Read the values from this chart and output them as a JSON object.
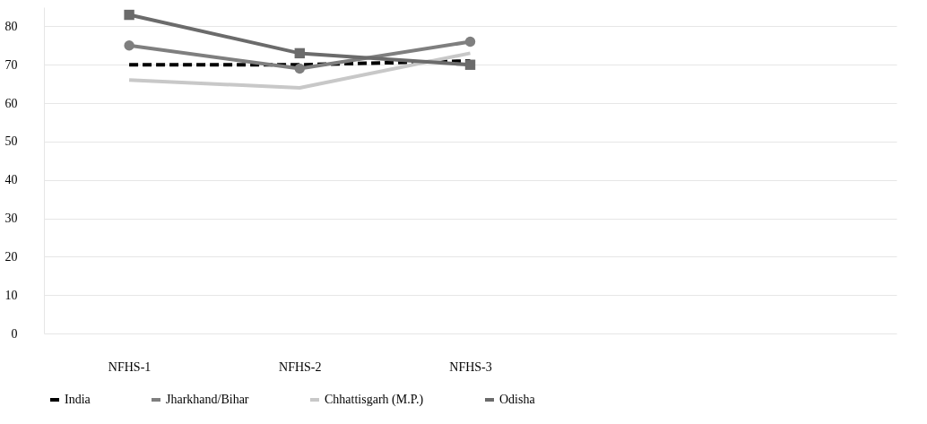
{
  "chart_data": {
    "type": "line",
    "categories": [
      "NFHS-1",
      "NFHS-2",
      "NFHS-3",
      null,
      null
    ],
    "series": [
      {
        "name": "India",
        "color": "#000000",
        "values": [
          70,
          70,
          71,
          null,
          null
        ],
        "line_style": "dashed",
        "marker": "none"
      },
      {
        "name": "Jharkhand/Bihar",
        "color": "#7f7f7f",
        "values": [
          75,
          69,
          76,
          null,
          null
        ],
        "line_style": "solid",
        "marker": "circle"
      },
      {
        "name": "Chhattisgarh (M.P.)",
        "color": "#c8c8c8",
        "values": [
          66,
          64,
          73,
          null,
          null
        ],
        "line_style": "solid",
        "marker": "none"
      },
      {
        "name": "Odisha",
        "color": "#6b6b6b",
        "values": [
          83,
          73,
          70,
          null,
          null
        ],
        "line_style": "solid",
        "marker": "square"
      }
    ],
    "ylim": [
      0,
      85
    ],
    "yticks": [
      0,
      10,
      20,
      30,
      40,
      50,
      60,
      70,
      80
    ],
    "grid": "y",
    "legend": "bottom"
  }
}
